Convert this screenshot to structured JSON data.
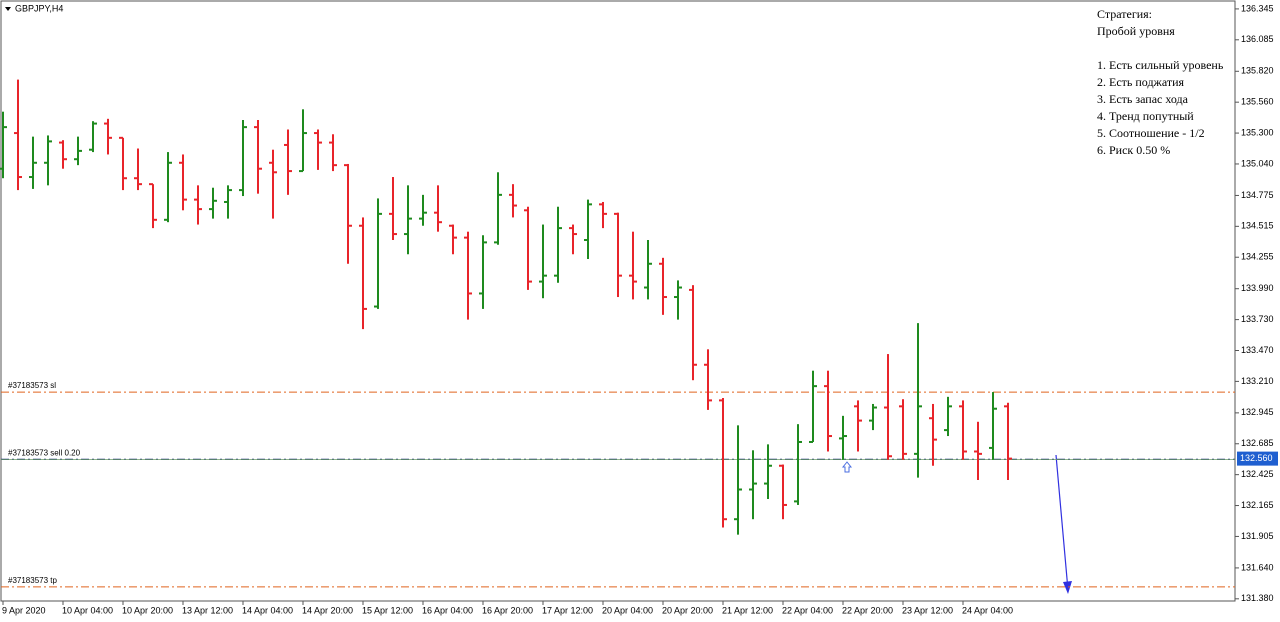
{
  "chart_data": {
    "type": "ohlc",
    "title": "GBPJPY,H4",
    "categories": [
      "9 Apr 2020",
      null,
      null,
      null,
      "10 Apr 04:00",
      null,
      null,
      null,
      "10 Apr 20:00",
      null,
      null,
      null,
      "13 Apr 12:00",
      null,
      null,
      null,
      "14 Apr 04:00",
      null,
      null,
      null,
      "14 Apr 20:00",
      null,
      null,
      null,
      "15 Apr 12:00",
      null,
      null,
      null,
      "16 Apr 04:00",
      null,
      null,
      null,
      "16 Apr 20:00",
      null,
      null,
      null,
      "17 Apr 12:00",
      null,
      null,
      null,
      "20 Apr 04:00",
      null,
      null,
      null,
      "20 Apr 20:00",
      null,
      null,
      null,
      "21 Apr 12:00",
      null,
      null,
      null,
      "22 Apr 04:00",
      null,
      null,
      null,
      "22 Apr 20:00",
      null,
      null,
      null,
      "23 Apr 12:00",
      null,
      null,
      null,
      "24 Apr 04:00",
      null,
      null,
      null
    ],
    "open": [
      135.0,
      135.3,
      134.93,
      135.05,
      135.22,
      135.08,
      135.16,
      135.38,
      135.26,
      134.92,
      134.87,
      134.57,
      135.05,
      134.74,
      134.66,
      134.72,
      134.82,
      135.35,
      135.05,
      135.2,
      134.98,
      135.3,
      135.22,
      135.03,
      134.52,
      133.84,
      134.62,
      134.45,
      134.58,
      134.63,
      134.52,
      134.42,
      133.95,
      134.38,
      134.78,
      134.65,
      134.05,
      134.1,
      134.5,
      134.4,
      134.7,
      134.62,
      134.1,
      134.0,
      134.2,
      133.92,
      133.98,
      133.35,
      133.05,
      132.05,
      132.3,
      132.35,
      132.5,
      132.2,
      132.7,
      133.17,
      132.73,
      133.0,
      132.88,
      132.99,
      133.0,
      132.6,
      132.9,
      132.8,
      133.0,
      132.62,
      132.65,
      133.0
    ],
    "high": [
      135.48,
      135.75,
      135.27,
      135.28,
      135.24,
      135.27,
      135.4,
      135.42,
      135.26,
      135.17,
      134.87,
      135.14,
      135.12,
      134.86,
      134.84,
      134.86,
      135.41,
      135.41,
      135.16,
      135.33,
      135.5,
      135.33,
      135.29,
      135.04,
      134.59,
      134.75,
      134.93,
      134.86,
      134.78,
      134.86,
      134.53,
      134.47,
      134.44,
      134.97,
      134.87,
      134.68,
      134.53,
      134.68,
      134.53,
      134.74,
      134.72,
      134.63,
      134.47,
      134.4,
      134.25,
      134.06,
      134.02,
      133.48,
      133.07,
      132.84,
      132.63,
      132.68,
      132.51,
      132.85,
      133.3,
      133.3,
      132.92,
      133.05,
      133.02,
      133.44,
      133.06,
      133.7,
      133.02,
      133.08,
      133.05,
      132.87,
      133.12,
      133.03
    ],
    "low": [
      134.92,
      134.82,
      134.83,
      134.86,
      135.0,
      135.03,
      135.14,
      135.12,
      134.82,
      134.82,
      134.5,
      134.55,
      134.65,
      134.53,
      134.58,
      134.58,
      134.77,
      134.79,
      134.58,
      134.78,
      134.98,
      134.99,
      134.98,
      134.2,
      133.65,
      133.82,
      134.4,
      134.28,
      134.52,
      134.47,
      134.28,
      133.73,
      133.82,
      134.36,
      134.59,
      133.98,
      133.91,
      134.04,
      134.28,
      134.24,
      134.5,
      133.92,
      133.9,
      133.9,
      133.77,
      133.73,
      133.22,
      132.97,
      131.98,
      131.92,
      132.05,
      132.22,
      132.05,
      132.17,
      132.7,
      132.62,
      132.55,
      132.62,
      132.8,
      132.55,
      132.55,
      132.4,
      132.5,
      132.75,
      132.55,
      132.38,
      132.55,
      132.38
    ],
    "close": [
      135.35,
      134.93,
      135.05,
      135.23,
      135.08,
      135.15,
      135.38,
      135.26,
      134.92,
      134.87,
      134.57,
      135.05,
      134.74,
      134.66,
      134.73,
      134.82,
      135.35,
      135.0,
      134.97,
      134.98,
      135.3,
      135.22,
      135.03,
      134.52,
      133.82,
      134.62,
      134.45,
      134.58,
      134.63,
      134.55,
      134.42,
      133.95,
      134.38,
      134.78,
      134.69,
      134.05,
      134.1,
      134.5,
      134.45,
      134.7,
      134.62,
      134.1,
      134.05,
      134.2,
      133.92,
      134.0,
      133.35,
      133.05,
      132.05,
      132.3,
      132.35,
      132.5,
      132.17,
      132.7,
      133.17,
      132.75,
      132.75,
      132.88,
      132.99,
      132.58,
      132.6,
      133.0,
      132.72,
      133.0,
      132.62,
      132.6,
      132.98,
      132.56
    ],
    "up_color": "#1e8a1e",
    "down_color": "#e8242a",
    "ylim": [
      131.37,
      136.42
    ],
    "yticks": [
      136.345,
      136.085,
      {
        "value": 135.82,
        "label": "135.820"
      },
      {
        "value": 135.56,
        "label": "135.560"
      },
      {
        "value": 135.3,
        "label": "135.300"
      },
      {
        "value": 135.04,
        "label": "135.040"
      },
      134.775,
      134.515,
      134.255,
      {
        "value": 133.99,
        "label": "133.990"
      },
      {
        "value": 133.73,
        "label": "133.730"
      },
      {
        "value": 133.47,
        "label": "133.470"
      },
      {
        "value": 133.21,
        "label": "133.210"
      },
      132.945,
      132.685,
      132.425,
      132.165,
      131.905,
      {
        "value": 131.64,
        "label": "131.640"
      },
      {
        "value": 131.38,
        "label": "131.380"
      }
    ],
    "levels": [
      {
        "name": "#37183573 sl",
        "value": 133.12,
        "color": "#e0641e"
      },
      {
        "name": "#37183573 sell 0.20",
        "value": 132.555,
        "color": "#1c2f7a"
      },
      {
        "name": "#37183573 tp",
        "value": 131.48,
        "color": "#e0641e"
      }
    ],
    "current_price": {
      "value": 132.56,
      "label": "132.560",
      "color": "#1f5fd0"
    },
    "annotation": [
      "Стратегия:",
      "Пробой уровня",
      "1. Есть сильный уровень",
      "2. Есть поджатия",
      "3. Есть запас хода",
      "4. Тренд попутный",
      "5. Соотношение - 1/2",
      "6. Риск 0.50 %"
    ]
  }
}
